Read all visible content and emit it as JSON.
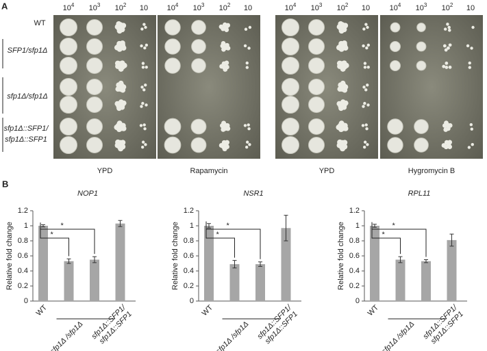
{
  "panel_a": {
    "label": "A",
    "dilutions": [
      {
        "base": "10",
        "exponent": "4"
      },
      {
        "base": "10",
        "exponent": "3"
      },
      {
        "base": "10",
        "exponent": "2"
      },
      {
        "base": "10"
      }
    ],
    "strains": [
      "WT",
      "SFP1/sfp1Δ",
      "sfp1Δ/sfp1Δ",
      [
        "sfp1Δ::SFP1/",
        "sfp1Δ::SFP1"
      ]
    ],
    "plates": [
      "YPD",
      "Rapamycin",
      "YPD",
      "Hygromycin B"
    ]
  },
  "panel_b": {
    "label": "B"
  },
  "chart_data": [
    {
      "type": "bar",
      "title": "NOP1",
      "y_label": "Relative fold change",
      "categories": [
        "WT",
        "sfp1Δ /sfp1Δ",
        null,
        [
          "sfp1Δ::SFP1/",
          "sfp1Δ::SFP1"
        ]
      ],
      "values": [
        1.0,
        0.53,
        0.55,
        1.03
      ],
      "errors": [
        0.015,
        0.03,
        0.04,
        0.04
      ],
      "color": "#a6a6a6",
      "ylim": [
        0,
        1.2
      ],
      "yticks": [
        0,
        0.2,
        0.4,
        0.6,
        0.8,
        1,
        1.2
      ],
      "annotations": [
        "*",
        "*"
      ]
    },
    {
      "type": "bar",
      "title": "NSR1",
      "y_label": "Relative fold change",
      "categories": [
        "WT",
        "sfp1Δ /sfp1Δ",
        null,
        [
          "sfp1Δ::SFP1/",
          "sfp1Δ::SFP1"
        ]
      ],
      "values": [
        1.0,
        0.49,
        0.49,
        0.97
      ],
      "errors": [
        0.03,
        0.05,
        0.03,
        0.17
      ],
      "color": "#a6a6a6",
      "ylim": [
        0,
        1.2
      ],
      "yticks": [
        0,
        0.2,
        0.4,
        0.6,
        0.8,
        1,
        1.2
      ],
      "annotations": [
        "*",
        "*"
      ]
    },
    {
      "type": "bar",
      "title": "RPL11",
      "y_label": "Relative fold change",
      "categories": [
        "WT",
        "sfp1Δ /sfp1Δ",
        null,
        [
          "sfp1Δ::SFP1/",
          "sfp1Δ::SFP1"
        ]
      ],
      "values": [
        1.0,
        0.55,
        0.53,
        0.81
      ],
      "errors": [
        0.02,
        0.04,
        0.02,
        0.08
      ],
      "color": "#a6a6a6",
      "ylim": [
        0,
        1.2
      ],
      "yticks": [
        0,
        0.2,
        0.4,
        0.6,
        0.8,
        1,
        1.2
      ],
      "annotations": [
        "*",
        "*"
      ]
    }
  ]
}
